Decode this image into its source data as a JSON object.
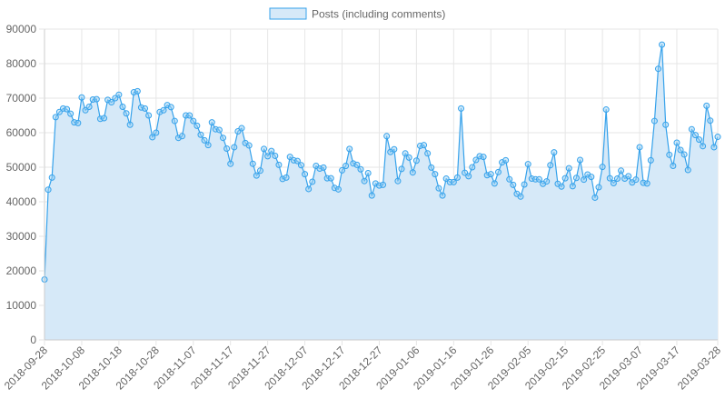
{
  "colors": {
    "line": "#36A2EB",
    "fill": "#D6E9F8",
    "point_fill": "#9AD0F5",
    "grid": "#e6e6e6",
    "logo_dark": "#4a6ab3",
    "logo_light": "#3d8cf0"
  },
  "chart_data": {
    "type": "area",
    "legend": {
      "label": "Posts (including comments)",
      "placement": "top-center"
    },
    "x_start": "2018-09-28",
    "x_end": "2019-03-28",
    "ylim": [
      0,
      90000
    ],
    "y_ticks": [
      0,
      10000,
      20000,
      30000,
      40000,
      50000,
      60000,
      70000,
      80000,
      90000
    ],
    "x_ticks": [
      "2018-09-28",
      "2018-10-08",
      "2018-10-18",
      "2018-10-28",
      "2018-11-07",
      "2018-11-17",
      "2018-11-27",
      "2018-12-07",
      "2018-12-17",
      "2018-12-27",
      "2019-01-06",
      "2019-01-16",
      "2019-01-26",
      "2019-02-05",
      "2019-02-15",
      "2019-02-25",
      "2019-03-07",
      "2019-03-17",
      "2019-03-28"
    ],
    "grid": true,
    "series": [
      {
        "name": "Posts (including comments)",
        "values": [
          17500,
          43500,
          47000,
          64500,
          66000,
          67000,
          66800,
          65500,
          63000,
          62800,
          70200,
          66500,
          67500,
          69600,
          69700,
          64000,
          64200,
          69500,
          68800,
          70000,
          71000,
          67500,
          65600,
          62300,
          71700,
          72000,
          67300,
          67000,
          65000,
          58700,
          60000,
          66000,
          66500,
          68000,
          67400,
          63400,
          58500,
          59000,
          65000,
          65000,
          63400,
          62000,
          59400,
          57800,
          56400,
          63000,
          61000,
          60800,
          58500,
          55400,
          51000,
          55800,
          60400,
          61300,
          57000,
          56300,
          51000,
          47600,
          49000,
          55300,
          53200,
          54700,
          53300,
          50700,
          46600,
          47000,
          53000,
          52000,
          51800,
          50600,
          48000,
          43700,
          45800,
          50400,
          49600,
          49900,
          46800,
          46800,
          44000,
          43600,
          49100,
          50400,
          55300,
          51100,
          50700,
          49400,
          46000,
          48300,
          41800,
          45300,
          44700,
          44900,
          59000,
          54400,
          55200,
          46000,
          49500,
          54000,
          52800,
          48500,
          51900,
          56200,
          56400,
          54000,
          49900,
          48000,
          43900,
          41800,
          46700,
          45700,
          45700,
          47000,
          67000,
          48400,
          47400,
          50000,
          52100,
          53200,
          53000,
          47700,
          48000,
          45300,
          48600,
          51400,
          52000,
          46500,
          44900,
          42300,
          41500,
          45000,
          50900,
          46700,
          46500,
          46500,
          45200,
          45900,
          50600,
          54300,
          45200,
          44400,
          46800,
          49700,
          44500,
          46900,
          52100,
          46400,
          47900,
          47200,
          41200,
          44200,
          50100,
          66700,
          46800,
          45400,
          46700,
          49000,
          46700,
          47400,
          45600,
          46400,
          55800,
          45500,
          45300,
          52000,
          63400,
          78500,
          85500,
          62300,
          53600,
          50400,
          57100,
          55000,
          53700,
          49200,
          61000,
          59300,
          58000,
          56100,
          67800,
          63500,
          55800,
          58800
        ]
      }
    ]
  }
}
